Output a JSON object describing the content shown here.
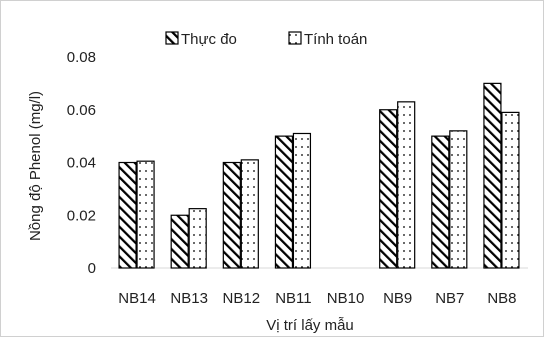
{
  "chart_data": {
    "type": "bar",
    "title": "",
    "xlabel": "Vị trí lấy mẫu",
    "ylabel": "Nồng độ Phenol (mg/l)",
    "categories": [
      "NB14",
      "NB13",
      "NB12",
      "NB11",
      "NB10",
      "NB9",
      "NB7",
      "NB8"
    ],
    "series": [
      {
        "name": "Thực đo",
        "values": [
          0.04,
          0.02,
          0.04,
          0.05,
          0,
          0.06,
          0.05,
          0.07
        ],
        "pattern": "diagonal-hatch"
      },
      {
        "name": "Tính toán",
        "values": [
          0.0405,
          0.0225,
          0.041,
          0.051,
          0,
          0.063,
          0.052,
          0.059
        ],
        "pattern": "dots"
      }
    ],
    "ylim": [
      0,
      0.08
    ],
    "yticks": [
      "0",
      "0.02",
      "0.04",
      "0.06",
      "0.08"
    ],
    "ytick_values": [
      0,
      0.02,
      0.04,
      0.06,
      0.08
    ],
    "grid": false,
    "legend_position": "top-center",
    "colors": {
      "bar_stroke": "#000000",
      "bar_fill": "#ffffff",
      "axis": "#d9d9d9",
      "text": "#222222"
    }
  }
}
